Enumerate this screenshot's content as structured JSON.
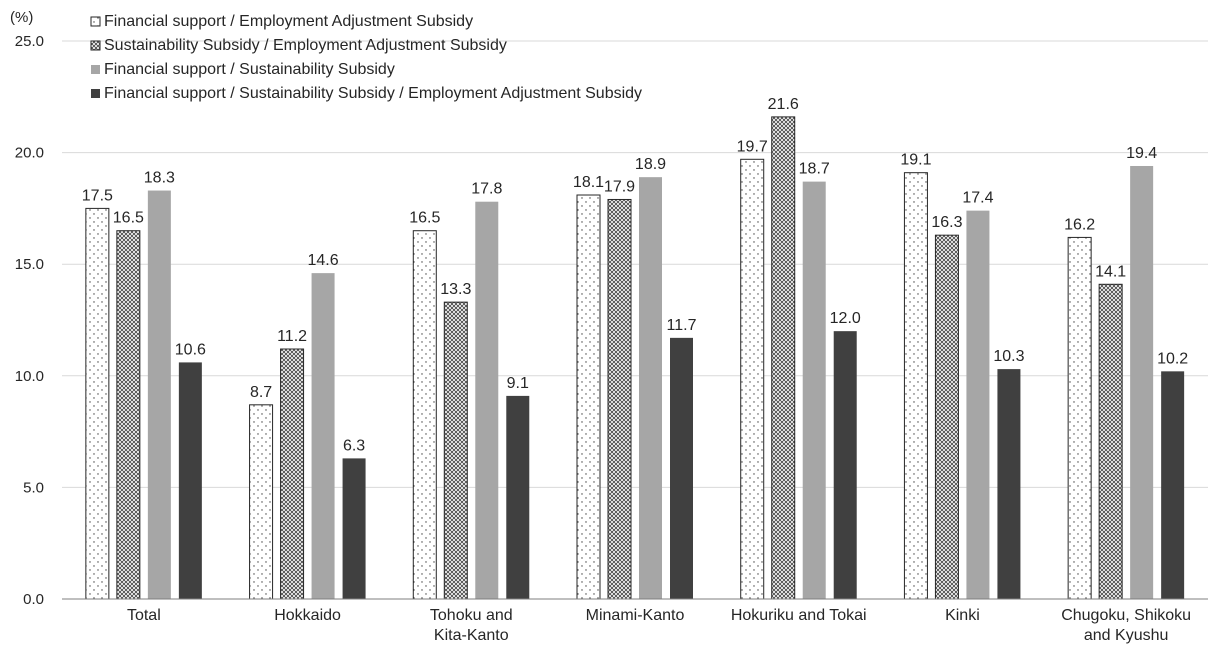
{
  "chart_data": {
    "type": "bar",
    "unit_label": "(%)",
    "ylim": [
      0,
      25
    ],
    "yticks": [
      "0.0",
      "5.0",
      "10.0",
      "15.0",
      "20.0",
      "25.0"
    ],
    "grid": true,
    "legend_position": "top-left",
    "categories": [
      [
        "Total"
      ],
      [
        "Hokkaido"
      ],
      [
        "Tohoku and",
        "Kita-Kanto"
      ],
      [
        "Minami-Kanto"
      ],
      [
        "Hokuriku and Tokai"
      ],
      [
        "Kinki"
      ],
      [
        "Chugoku, Shikoku",
        "and Kyushu"
      ]
    ],
    "series": [
      {
        "name": "Financial support / Employment Adjustment Subsidy",
        "pattern": "dots",
        "color": "#ffffff",
        "values": [
          17.5,
          8.7,
          16.5,
          18.1,
          19.7,
          19.1,
          16.2
        ],
        "labels": [
          "17.5",
          "8.7",
          "16.5",
          "18.1",
          "19.7",
          "19.1",
          "16.2"
        ]
      },
      {
        "name": "Sustainability Subsidy / Employment Adjustment Subsidy",
        "pattern": "crosshatch",
        "color": "#ffffff",
        "values": [
          16.5,
          11.2,
          13.3,
          17.9,
          21.6,
          16.3,
          14.1
        ],
        "labels": [
          "16.5",
          "11.2",
          "13.3",
          "17.9",
          "21.6",
          "16.3",
          "14.1"
        ]
      },
      {
        "name": "Financial support / Sustainability Subsidy",
        "pattern": "solid",
        "color": "#a6a6a6",
        "values": [
          18.3,
          14.6,
          17.8,
          18.9,
          18.7,
          17.4,
          19.4
        ],
        "labels": [
          "18.3",
          "14.6",
          "17.8",
          "18.9",
          "18.7",
          "17.4",
          "19.4"
        ]
      },
      {
        "name": "Financial support / Sustainability Subsidy / Employment Adjustment Subsidy",
        "pattern": "solid",
        "color": "#404040",
        "values": [
          10.6,
          6.3,
          9.1,
          11.7,
          12.0,
          10.3,
          10.2
        ],
        "labels": [
          "10.6",
          "6.3",
          "9.1",
          "11.7",
          "12.0",
          "10.3",
          "10.2"
        ]
      }
    ]
  }
}
